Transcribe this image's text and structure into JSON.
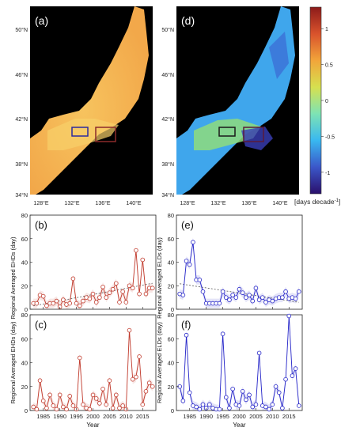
{
  "figure": {
    "colorbar": {
      "ticks": [
        1,
        0.5,
        0,
        -0.5,
        -1
      ],
      "ticklabels": [
        "1",
        "0.5",
        "0",
        "-0.5",
        "-1"
      ],
      "range": [
        -1.3,
        1.3
      ],
      "unit_label": "[days decade",
      "unit_sup": "-1",
      "unit_close": "]",
      "stops": [
        "#2a0f6b",
        "#3b57c9",
        "#39b8f0",
        "#7ee3b4",
        "#d6e04f",
        "#f2a53a",
        "#d9532c",
        "#8c1a1a"
      ]
    },
    "maps": [
      {
        "panel": "(a)",
        "lat_labels": [
          "50°N",
          "46°N",
          "42°N",
          "38°N",
          "34°N"
        ],
        "lon_labels": [
          "128°E",
          "132°E",
          "136°E",
          "140°E"
        ],
        "colors": {
          "sea": "#f2a84a",
          "sea_light": "#f7c35e",
          "land": "#000000",
          "boxes": "#2b2b9e"
        }
      },
      {
        "panel": "(d)",
        "lat_labels": [
          "50°N",
          "46°N",
          "42°N",
          "38°N",
          "34°N"
        ],
        "lon_labels": [
          "128°E",
          "132°E",
          "136°E",
          "140°E"
        ],
        "colors": {
          "sea": "#3fa6ec",
          "sea_warm": "#8fdc7d",
          "sea_cool": "#3a5fd0",
          "land": "#000000",
          "boxes": "#3b1a3b"
        }
      }
    ]
  },
  "chart_data": [
    {
      "type": "line",
      "panel": "(b)",
      "ylabel": "Regional Averaged EHDs (day)",
      "xlabel": "",
      "xlim": [
        1981,
        2019
      ],
      "ylim": [
        0,
        80
      ],
      "yticks": [
        0,
        20,
        40,
        60,
        80
      ],
      "xticks": [
        1985,
        1990,
        1995,
        2000,
        2005,
        2010,
        2015
      ],
      "color": "#c0392b",
      "trend": true,
      "trend_color": "#555555",
      "series": [
        {
          "x": [
            1982,
            1983,
            1984,
            1985,
            1986,
            1987,
            1988,
            1989,
            1990,
            1991,
            1992,
            1993,
            1994,
            1995,
            1996,
            1997,
            1998,
            1999,
            2000,
            2001,
            2002,
            2003,
            2004,
            2005,
            2006,
            2007,
            2008,
            2009,
            2010,
            2011,
            2012,
            2013,
            2014,
            2015,
            2016,
            2017,
            2018
          ],
          "y": [
            5,
            5,
            12,
            11,
            3,
            5,
            5,
            7,
            2,
            8,
            4,
            5,
            26,
            5,
            3,
            7,
            10,
            9,
            13,
            6,
            10,
            19,
            10,
            14,
            17,
            22,
            6,
            15,
            6,
            20,
            18,
            50,
            13,
            42,
            13,
            18,
            18
          ]
        }
      ]
    },
    {
      "type": "line",
      "panel": "(c)",
      "ylabel": "Regional Averaged EHDs (day)",
      "xlabel": "Year",
      "xlim": [
        1981,
        2019
      ],
      "ylim": [
        0,
        80
      ],
      "yticks": [
        0,
        20,
        40,
        60,
        80
      ],
      "xticks": [
        1985,
        1990,
        1995,
        2000,
        2005,
        2010,
        2015
      ],
      "xticklabels": [
        "1985",
        "1990",
        "1995",
        "2000",
        "2005",
        "2010",
        "2015"
      ],
      "color": "#c0392b",
      "trend": false,
      "series": [
        {
          "x": [
            1982,
            1983,
            1984,
            1985,
            1986,
            1987,
            1988,
            1989,
            1990,
            1991,
            1992,
            1993,
            1994,
            1995,
            1996,
            1997,
            1998,
            1999,
            2000,
            2001,
            2002,
            2003,
            2004,
            2005,
            2006,
            2007,
            2008,
            2009,
            2010,
            2011,
            2012,
            2013,
            2014,
            2015,
            2016,
            2017,
            2018
          ],
          "y": [
            3,
            1,
            25,
            8,
            2,
            13,
            4,
            1,
            13,
            3,
            1,
            12,
            4,
            1,
            44,
            5,
            2,
            1,
            13,
            10,
            6,
            18,
            5,
            25,
            2,
            13,
            2,
            4,
            1,
            67,
            26,
            28,
            45,
            5,
            16,
            23,
            20
          ]
        }
      ]
    },
    {
      "type": "line",
      "panel": "(e)",
      "ylabel": "Regional Averaged ELDs (day)",
      "xlabel": "",
      "xlim": [
        1981,
        2019
      ],
      "ylim": [
        0,
        80
      ],
      "yticks": [
        0,
        20,
        40,
        60,
        80
      ],
      "xticks": [
        1985,
        1990,
        1995,
        2000,
        2005,
        2010,
        2015
      ],
      "color": "#2424c8",
      "trend": true,
      "trend_color": "#555555",
      "series": [
        {
          "x": [
            1982,
            1983,
            1984,
            1985,
            1986,
            1987,
            1988,
            1989,
            1990,
            1991,
            1992,
            1993,
            1994,
            1995,
            1996,
            1997,
            1998,
            1999,
            2000,
            2001,
            2002,
            2003,
            2004,
            2005,
            2006,
            2007,
            2008,
            2009,
            2010,
            2011,
            2012,
            2013,
            2014,
            2015,
            2016,
            2017,
            2018
          ],
          "y": [
            13,
            12,
            41,
            38,
            57,
            25,
            25,
            15,
            5,
            5,
            5,
            5,
            5,
            15,
            10,
            8,
            12,
            10,
            17,
            14,
            10,
            12,
            7,
            18,
            8,
            10,
            6,
            8,
            7,
            9,
            10,
            10,
            15,
            9,
            10,
            9,
            15
          ]
        }
      ]
    },
    {
      "type": "line",
      "panel": "(f)",
      "ylabel": "Regional Averaged ELDs (day)",
      "xlabel": "Year",
      "xlim": [
        1981,
        2019
      ],
      "ylim": [
        0,
        80
      ],
      "yticks": [
        0,
        20,
        40,
        60,
        80
      ],
      "xticks": [
        1985,
        1990,
        1995,
        2000,
        2005,
        2010,
        2015
      ],
      "xticklabels": [
        "1985",
        "1990",
        "1995",
        "2000",
        "2005",
        "2010",
        "2015"
      ],
      "color": "#2424c8",
      "trend": false,
      "series": [
        {
          "x": [
            1982,
            1983,
            1984,
            1985,
            1986,
            1987,
            1988,
            1989,
            1990,
            1991,
            1992,
            1993,
            1994,
            1995,
            1996,
            1997,
            1998,
            1999,
            2000,
            2001,
            2002,
            2003,
            2004,
            2005,
            2006,
            2007,
            2008,
            2009,
            2010,
            2011,
            2012,
            2013,
            2014,
            2015,
            2016,
            2017,
            2018
          ],
          "y": [
            20,
            8,
            63,
            15,
            4,
            3,
            1,
            5,
            2,
            5,
            2,
            1,
            1,
            64,
            11,
            2,
            18,
            5,
            4,
            16,
            9,
            13,
            3,
            5,
            48,
            4,
            3,
            1,
            5,
            20,
            15,
            2,
            26,
            79,
            29,
            35,
            4
          ]
        }
      ]
    }
  ]
}
